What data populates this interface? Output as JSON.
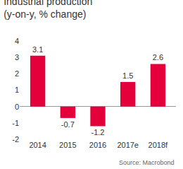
{
  "chart_data": {
    "type": "bar",
    "title": "Industrial production",
    "subtitle": "(y-on-y, % change)",
    "categories": [
      "2014",
      "2015",
      "2016",
      "2017e",
      "2018f"
    ],
    "values": [
      3.1,
      -0.7,
      -1.2,
      1.5,
      2.6
    ],
    "color": "#e4003a",
    "ylim": [
      -2,
      4
    ],
    "yticks": [
      -2,
      -1,
      0,
      1,
      2,
      3,
      4
    ],
    "grid": false,
    "data_labels": true,
    "annotations": [
      "Source: Macrobond"
    ]
  }
}
